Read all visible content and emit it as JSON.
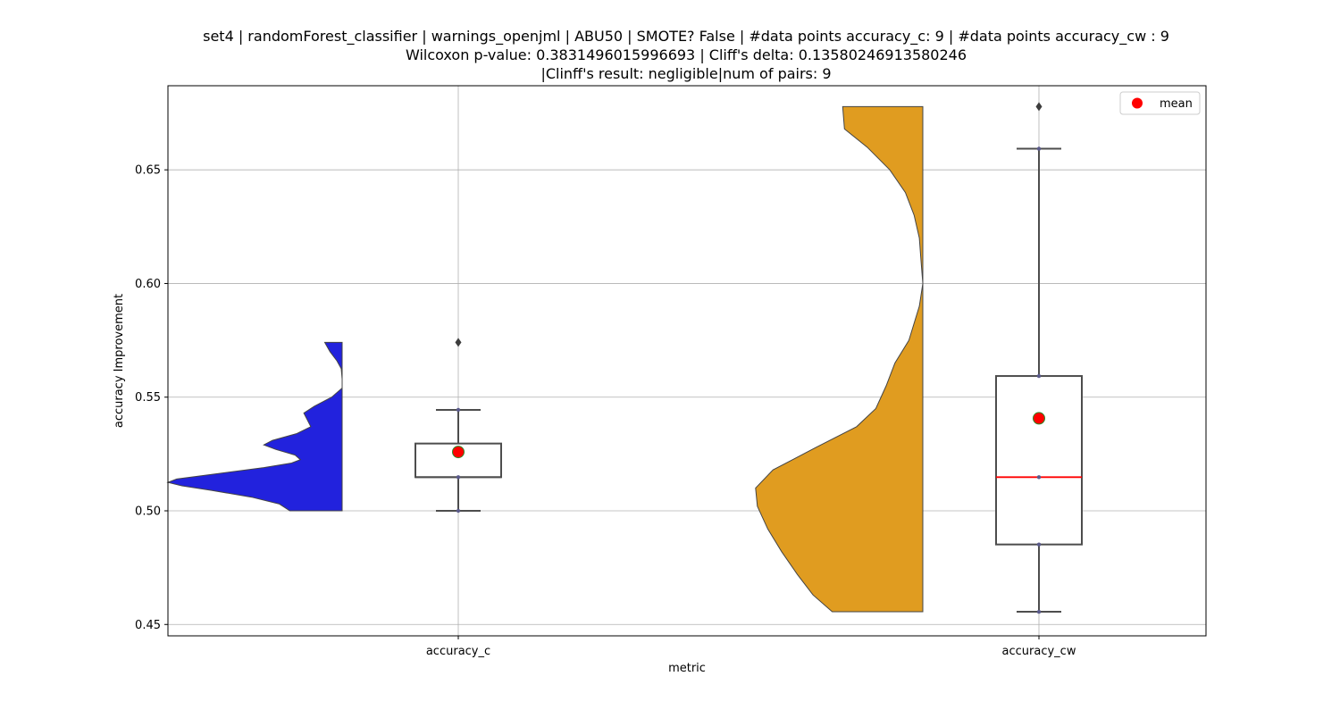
{
  "chart_data": {
    "type": "box-violin",
    "title_lines": [
      "set4 | randomForest_classifier | warnings_openjml | ABU50 | SMOTE? False | #data points accuracy_c: 9 | #data points accuracy_cw : 9",
      "Wilcoxon p-value: 0.3831496015996693 | Cliff's delta: 0.13580246913580246",
      "|Clinff's result: negligible|num of pairs: 9"
    ],
    "xlabel": "metric",
    "ylabel": "accuracy Improvement",
    "ylim": [
      0.445,
      0.687
    ],
    "yticks": [
      0.45,
      0.5,
      0.55,
      0.6,
      0.65
    ],
    "ytick_labels": [
      "0.45",
      "0.50",
      "0.55",
      "0.60",
      "0.65"
    ],
    "grid": true,
    "legend": {
      "placement": "top-right",
      "entries": [
        {
          "label": "mean",
          "color": "#ff0000",
          "marker": "circle"
        }
      ]
    },
    "categories": [
      "accuracy_c",
      "accuracy_cw"
    ],
    "series": [
      {
        "name": "accuracy_c",
        "violin_color": "#2222dd",
        "box": {
          "q1": 0.5148,
          "median": 0.5148,
          "q3": 0.5296,
          "whisker_low": 0.5,
          "whisker_high": 0.5444,
          "mean": 0.5259
        },
        "outliers": [
          0.5741
        ],
        "points": [
          0.5,
          0.5148,
          0.5444
        ],
        "density_range": [
          0.5,
          0.5741
        ],
        "density": [
          [
            0.5,
            0.3
          ],
          [
            0.503,
            0.36
          ],
          [
            0.506,
            0.52
          ],
          [
            0.509,
            0.75
          ],
          [
            0.511,
            0.92
          ],
          [
            0.5125,
            1.0
          ],
          [
            0.514,
            0.95
          ],
          [
            0.5165,
            0.7
          ],
          [
            0.519,
            0.45
          ],
          [
            0.521,
            0.29
          ],
          [
            0.5225,
            0.24
          ],
          [
            0.5245,
            0.27
          ],
          [
            0.527,
            0.38
          ],
          [
            0.529,
            0.45
          ],
          [
            0.531,
            0.4
          ],
          [
            0.534,
            0.26
          ],
          [
            0.537,
            0.18
          ],
          [
            0.54,
            0.2
          ],
          [
            0.543,
            0.22
          ],
          [
            0.546,
            0.16
          ],
          [
            0.55,
            0.06
          ],
          [
            0.554,
            0.0
          ],
          [
            0.558,
            0.0
          ],
          [
            0.5625,
            0.005
          ],
          [
            0.566,
            0.03
          ],
          [
            0.57,
            0.07
          ],
          [
            0.5741,
            0.1
          ]
        ]
      },
      {
        "name": "accuracy_cw",
        "violin_color": "#e09c20",
        "box": {
          "q1": 0.4852,
          "median": 0.5148,
          "q3": 0.5593,
          "whisker_low": 0.4556,
          "whisker_high": 0.6593,
          "mean": 0.5407
        },
        "outliers": [
          0.6778
        ],
        "points": [
          0.4556,
          0.4852,
          0.5148,
          0.5593,
          0.6593
        ],
        "density_range": [
          0.4556,
          0.6778
        ],
        "density": [
          [
            0.4556,
            0.52
          ],
          [
            0.463,
            0.63
          ],
          [
            0.472,
            0.72
          ],
          [
            0.482,
            0.81
          ],
          [
            0.492,
            0.89
          ],
          [
            0.502,
            0.95
          ],
          [
            0.51,
            0.96
          ],
          [
            0.518,
            0.86
          ],
          [
            0.528,
            0.61
          ],
          [
            0.537,
            0.38
          ],
          [
            0.545,
            0.27
          ],
          [
            0.555,
            0.21
          ],
          [
            0.565,
            0.16
          ],
          [
            0.575,
            0.08
          ],
          [
            0.59,
            0.02
          ],
          [
            0.6,
            0.0
          ],
          [
            0.61,
            0.01
          ],
          [
            0.62,
            0.02
          ],
          [
            0.63,
            0.05
          ],
          [
            0.64,
            0.1
          ],
          [
            0.65,
            0.19
          ],
          [
            0.66,
            0.32
          ],
          [
            0.668,
            0.45
          ],
          [
            0.6778,
            0.46
          ]
        ]
      }
    ],
    "colors": {
      "grid": "#b0b0b0",
      "box_edge": "#4d4d4d",
      "median_cw": "#ff0000",
      "mean_fill": "#ff0000",
      "mean_edge": "#2a8a2a",
      "point": "#5a5a8a"
    }
  }
}
